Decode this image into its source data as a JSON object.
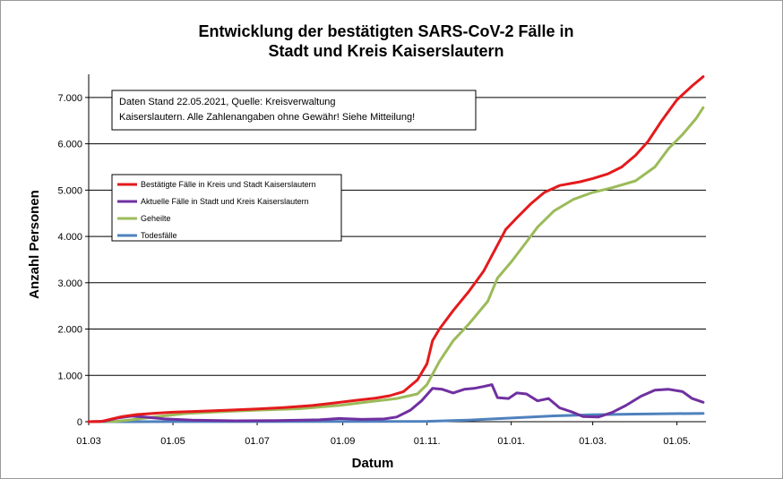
{
  "chart_data": {
    "type": "line",
    "title_lines": [
      "Entwicklung der bestätigten SARS-CoV-2 Fälle in",
      "Stadt und Kreis Kaiserslautern"
    ],
    "xlabel": "Datum",
    "ylabel": "Anzahl Personen",
    "ylim": [
      0,
      7500
    ],
    "yticks": [
      0,
      1000,
      2000,
      3000,
      4000,
      5000,
      6000,
      7000
    ],
    "ytick_labels": [
      "0",
      "1.000",
      "2.000",
      "3.000",
      "4.000",
      "5.000",
      "6.000",
      "7.000"
    ],
    "x_domain": [
      "2020-03-01",
      "2021-05-22"
    ],
    "xticks": [
      "2020-03-01",
      "2020-05-01",
      "2020-07-01",
      "2020-09-01",
      "2020-11-01",
      "2021-01-01",
      "2021-03-01",
      "2021-05-01"
    ],
    "xtick_labels": [
      "01.03",
      "01.05",
      "01.07",
      "01.09",
      "01.11.",
      "01.01.",
      "01.03.",
      "01.05."
    ],
    "grid": "horizontal",
    "note_lines": [
      "Daten Stand 22.05.2021, Quelle: Kreisverwaltung",
      "Kaiserslautern. Alle Zahlenangaben ohne Gewähr! Siehe Mitteilung!"
    ],
    "legend_position": "upper-left",
    "series": [
      {
        "name": "Bestätigte Fälle in Kreis und Stadt Kaiserslautern",
        "color": "#e41a1c",
        "points": [
          [
            "2020-03-01",
            0
          ],
          [
            "2020-03-10",
            5
          ],
          [
            "2020-03-15",
            40
          ],
          [
            "2020-03-25",
            110
          ],
          [
            "2020-04-05",
            155
          ],
          [
            "2020-04-20",
            185
          ],
          [
            "2020-05-01",
            205
          ],
          [
            "2020-05-20",
            225
          ],
          [
            "2020-06-10",
            250
          ],
          [
            "2020-07-01",
            275
          ],
          [
            "2020-07-20",
            305
          ],
          [
            "2020-08-10",
            350
          ],
          [
            "2020-08-25",
            400
          ],
          [
            "2020-09-10",
            460
          ],
          [
            "2020-09-25",
            510
          ],
          [
            "2020-10-05",
            560
          ],
          [
            "2020-10-15",
            650
          ],
          [
            "2020-10-25",
            900
          ],
          [
            "2020-11-01",
            1250
          ],
          [
            "2020-11-05",
            1750
          ],
          [
            "2020-11-10",
            2000
          ],
          [
            "2020-11-20",
            2400
          ],
          [
            "2020-12-01",
            2800
          ],
          [
            "2020-12-12",
            3250
          ],
          [
            "2020-12-20",
            3700
          ],
          [
            "2020-12-28",
            4150
          ],
          [
            "2021-01-05",
            4400
          ],
          [
            "2021-01-15",
            4700
          ],
          [
            "2021-01-25",
            4950
          ],
          [
            "2021-02-05",
            5100
          ],
          [
            "2021-02-20",
            5180
          ],
          [
            "2021-03-01",
            5250
          ],
          [
            "2021-03-12",
            5350
          ],
          [
            "2021-03-22",
            5500
          ],
          [
            "2021-04-01",
            5750
          ],
          [
            "2021-04-10",
            6050
          ],
          [
            "2021-04-20",
            6500
          ],
          [
            "2021-05-01",
            6950
          ],
          [
            "2021-05-12",
            7250
          ],
          [
            "2021-05-20",
            7450
          ]
        ]
      },
      {
        "name": "Aktuelle Fälle in Stadt und Kreis Kaiserslautern",
        "color": "#7030a0",
        "points": [
          [
            "2020-03-01",
            0
          ],
          [
            "2020-03-12",
            10
          ],
          [
            "2020-03-22",
            80
          ],
          [
            "2020-04-01",
            120
          ],
          [
            "2020-04-10",
            100
          ],
          [
            "2020-04-25",
            60
          ],
          [
            "2020-05-15",
            35
          ],
          [
            "2020-06-15",
            20
          ],
          [
            "2020-07-15",
            25
          ],
          [
            "2020-08-15",
            40
          ],
          [
            "2020-08-30",
            70
          ],
          [
            "2020-09-15",
            50
          ],
          [
            "2020-10-01",
            60
          ],
          [
            "2020-10-10",
            100
          ],
          [
            "2020-10-20",
            250
          ],
          [
            "2020-10-28",
            450
          ],
          [
            "2020-11-05",
            720
          ],
          [
            "2020-11-12",
            700
          ],
          [
            "2020-11-20",
            620
          ],
          [
            "2020-11-28",
            700
          ],
          [
            "2020-12-05",
            720
          ],
          [
            "2020-12-12",
            760
          ],
          [
            "2020-12-18",
            800
          ],
          [
            "2020-12-22",
            520
          ],
          [
            "2020-12-30",
            500
          ],
          [
            "2021-01-05",
            620
          ],
          [
            "2021-01-12",
            600
          ],
          [
            "2021-01-20",
            450
          ],
          [
            "2021-01-28",
            500
          ],
          [
            "2021-02-05",
            300
          ],
          [
            "2021-02-15",
            200
          ],
          [
            "2021-02-22",
            110
          ],
          [
            "2021-03-05",
            100
          ],
          [
            "2021-03-15",
            200
          ],
          [
            "2021-03-25",
            350
          ],
          [
            "2021-04-05",
            550
          ],
          [
            "2021-04-15",
            680
          ],
          [
            "2021-04-25",
            700
          ],
          [
            "2021-05-05",
            650
          ],
          [
            "2021-05-12",
            500
          ],
          [
            "2021-05-20",
            420
          ]
        ]
      },
      {
        "name": "Geheilte",
        "color": "#9bbb59",
        "points": [
          [
            "2020-03-01",
            0
          ],
          [
            "2020-03-20",
            5
          ],
          [
            "2020-04-01",
            40
          ],
          [
            "2020-04-20",
            110
          ],
          [
            "2020-05-10",
            175
          ],
          [
            "2020-06-01",
            210
          ],
          [
            "2020-07-01",
            250
          ],
          [
            "2020-08-01",
            280
          ],
          [
            "2020-09-01",
            360
          ],
          [
            "2020-09-20",
            430
          ],
          [
            "2020-10-10",
            500
          ],
          [
            "2020-10-25",
            600
          ],
          [
            "2020-11-01",
            800
          ],
          [
            "2020-11-10",
            1300
          ],
          [
            "2020-11-20",
            1750
          ],
          [
            "2020-12-01",
            2100
          ],
          [
            "2020-12-15",
            2600
          ],
          [
            "2020-12-22",
            3100
          ],
          [
            "2021-01-01",
            3450
          ],
          [
            "2021-01-10",
            3800
          ],
          [
            "2021-01-20",
            4200
          ],
          [
            "2021-02-01",
            4550
          ],
          [
            "2021-02-15",
            4800
          ],
          [
            "2021-03-01",
            4950
          ],
          [
            "2021-03-15",
            5050
          ],
          [
            "2021-04-01",
            5200
          ],
          [
            "2021-04-15",
            5500
          ],
          [
            "2021-04-25",
            5900
          ],
          [
            "2021-05-05",
            6200
          ],
          [
            "2021-05-15",
            6550
          ],
          [
            "2021-05-20",
            6780
          ]
        ]
      },
      {
        "name": "Todesfälle",
        "color": "#4f81bd",
        "points": [
          [
            "2020-03-01",
            0
          ],
          [
            "2020-04-01",
            0
          ],
          [
            "2020-05-01",
            2
          ],
          [
            "2020-09-01",
            5
          ],
          [
            "2020-11-01",
            8
          ],
          [
            "2020-12-01",
            35
          ],
          [
            "2021-01-01",
            80
          ],
          [
            "2021-02-01",
            125
          ],
          [
            "2021-03-01",
            148
          ],
          [
            "2021-04-01",
            165
          ],
          [
            "2021-05-20",
            180
          ]
        ]
      }
    ]
  }
}
